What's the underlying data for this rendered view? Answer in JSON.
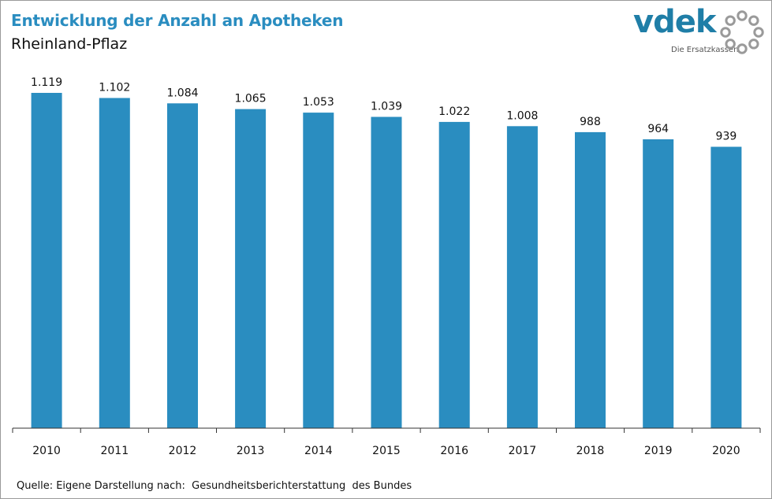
{
  "header": {
    "title": "Entwicklung der Anzahl an Apotheken",
    "subtitle": "Rheinland-Pflaz"
  },
  "logo": {
    "wordmark": "vdek",
    "tagline": "Die Ersatzkassen",
    "brand_color": "#1f7ea7",
    "ring_color": "#9a9a9a"
  },
  "footer": {
    "source": "Quelle: Eigene Darstellung nach:  Gesundheitsberichterstattung  des Bundes"
  },
  "colors": {
    "bar": "#2a8dc0",
    "title": "#2a8dc0",
    "text": "#111111",
    "axis": "#333333"
  },
  "chart_data": {
    "type": "bar",
    "title": "Entwicklung der Anzahl an Apotheken",
    "subtitle": "Rheinland-Pflaz",
    "categories": [
      "2010",
      "2011",
      "2012",
      "2013",
      "2014",
      "2015",
      "2016",
      "2017",
      "2018",
      "2019",
      "2020"
    ],
    "values": [
      1119,
      1102,
      1084,
      1065,
      1053,
      1039,
      1022,
      1008,
      988,
      964,
      939
    ],
    "value_labels": [
      "1.119",
      "1.102",
      "1.084",
      "1.065",
      "1.053",
      "1.039",
      "1.022",
      "1.008",
      "988",
      "964",
      "939"
    ],
    "xlabel": "",
    "ylabel": "",
    "ylim": [
      0,
      1119
    ],
    "grid": false,
    "legend": "none"
  }
}
